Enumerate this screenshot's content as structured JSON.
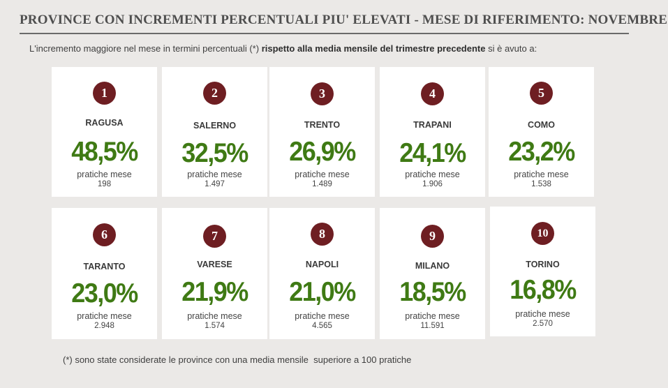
{
  "header": {
    "title": "PROVINCE CON INCREMENTI PERCENTUALI PIU' ELEVATI - MESE DI RIFERIMENTO: NOVEMBRE"
  },
  "intro": {
    "part1": "L'incremento maggiore nel mese in termini percentuali (*) ",
    "bold": "rispetto alla media mensile del trimestre precedente",
    "part2": " si è avuto a:"
  },
  "cards": [
    {
      "rank": "1",
      "city": "RAGUSA",
      "percent": "48,5%",
      "label": "pratiche mese",
      "count": "198"
    },
    {
      "rank": "2",
      "city": "SALERNO",
      "percent": "32,5%",
      "label": "pratiche mese",
      "count": "1.497"
    },
    {
      "rank": "3",
      "city": "TRENTO",
      "percent": "26,9%",
      "label": "pratiche mese",
      "count": "1.489"
    },
    {
      "rank": "4",
      "city": "TRAPANI",
      "percent": "24,1%",
      "label": "pratiche mese",
      "count": "1.906"
    },
    {
      "rank": "5",
      "city": "COMO",
      "percent": "23,2%",
      "label": "pratiche mese",
      "count": "1.538"
    },
    {
      "rank": "6",
      "city": "TARANTO",
      "percent": "23,0%",
      "label": "pratiche mese",
      "count": "2.948"
    },
    {
      "rank": "7",
      "city": "VARESE",
      "percent": "21,9%",
      "label": "pratiche mese",
      "count": "1.574"
    },
    {
      "rank": "8",
      "city": "NAPOLI",
      "percent": "21,0%",
      "label": "pratiche mese",
      "count": "4.565"
    },
    {
      "rank": "9",
      "city": "MILANO",
      "percent": "18,5%",
      "label": "pratiche mese",
      "count": "11.591"
    },
    {
      "rank": "10",
      "city": "TORINO",
      "percent": "16,8%",
      "label": "pratiche mese",
      "count": "2.570"
    }
  ],
  "footnote": "(*) sono state considerate le province con una media mensile  superiore a 100 pratiche",
  "colors": {
    "badge": "#6e1e22",
    "percent": "#3f7a14",
    "background": "#ebe9e7"
  }
}
